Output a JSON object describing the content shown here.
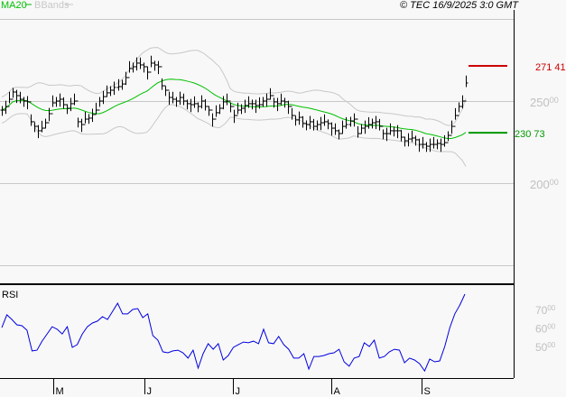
{
  "header": {
    "legend_ma": "MA20",
    "legend_bbands": "BBands",
    "copyright": "© TEC 16/9/2025 3:0 GMT"
  },
  "colors": {
    "background": "#f8f8f8",
    "bars": "#000000",
    "ma": "#00c000",
    "bands": "#c8c8c8",
    "rsi": "#0000e0",
    "resistance": "#cc0000",
    "support": "#009900",
    "axis_labels": "#c0c0c0"
  },
  "chart_data": [
    {
      "type": "bar",
      "title": "",
      "overlays": [
        "MA20",
        "BBands"
      ],
      "y_ticks": [
        {
          "value": 250,
          "label": "250",
          "sup": "00"
        },
        {
          "value": 200,
          "label": "200",
          "sup": "00"
        }
      ],
      "ylim": [
        143,
        300
      ],
      "levels": [
        {
          "name": "resistance",
          "value": 271.41,
          "label": "271",
          "sup": "41"
        },
        {
          "name": "support",
          "value": 230.73,
          "label": "230",
          "sup": "73"
        }
      ],
      "close": [
        244.5,
        246.7,
        251.1,
        255.5,
        253.3,
        251.1,
        250,
        249.5,
        237.4,
        234.6,
        231.9,
        233.5,
        236.8,
        242.3,
        248.9,
        250,
        251.1,
        247.8,
        245.6,
        248.4,
        250,
        237.4,
        235.7,
        239,
        239.6,
        241.8,
        244.5,
        250,
        252.7,
        255,
        256.6,
        258.3,
        258.8,
        260.4,
        264.3,
        269.8,
        270.9,
        273.1,
        272,
        270.9,
        267.6,
        273.1,
        272,
        270.9,
        259.3,
        256.6,
        252.2,
        251.1,
        250,
        252.2,
        250,
        248.4,
        247.8,
        248.4,
        246.7,
        250,
        246.7,
        244.5,
        239,
        242.9,
        245.6,
        249.5,
        250,
        246.7,
        241.2,
        244.5,
        245.6,
        247.3,
        248.4,
        248.4,
        247.3,
        247.8,
        250,
        251.1,
        253.3,
        249.5,
        248.4,
        250,
        249.5,
        246.7,
        241.2,
        238.5,
        240.1,
        236.3,
        235.7,
        237.4,
        234.6,
        235.7,
        236.8,
        237.4,
        236.3,
        233.5,
        231.9,
        230.2,
        234.6,
        235.7,
        237.9,
        239,
        230.2,
        233.5,
        234.6,
        235.7,
        236.8,
        237.4,
        234.6,
        230.2,
        230.2,
        231.9,
        231.9,
        231.9,
        228,
        225.8,
        226.9,
        227.5,
        226.4,
        223.6,
        223.6,
        222.5,
        223.6,
        223.6,
        224.2,
        223.6,
        224.7,
        229.1,
        234.6,
        241.2,
        246.7,
        250,
        261
      ]
    },
    {
      "type": "line",
      "title": "RSI",
      "y_ticks": [
        {
          "value": 70,
          "label": "70",
          "sup": "00"
        },
        {
          "value": 60,
          "label": "60",
          "sup": "00"
        },
        {
          "value": 50,
          "label": "50",
          "sup": "00"
        }
      ],
      "x_ticks": [
        "M",
        "J",
        "J",
        "A",
        "S"
      ],
      "values": [
        60.2,
        67.1,
        64.6,
        61.7,
        61.2,
        58.8,
        47.6,
        48,
        52.9,
        56.8,
        60.7,
        59.3,
        56.8,
        60.7,
        49.5,
        51,
        56.8,
        60.7,
        62.7,
        63.7,
        66.1,
        64.6,
        69,
        73.4,
        67.6,
        67.6,
        70,
        70.5,
        65.6,
        67.6,
        55.9,
        53.4,
        47.1,
        46.6,
        47.6,
        48,
        46.6,
        43.7,
        48,
        38.3,
        46.1,
        51.5,
        48.5,
        51.5,
        42.7,
        45.1,
        49.5,
        51,
        52.4,
        52,
        52.9,
        51.5,
        59.3,
        52,
        51.5,
        55.4,
        51,
        48.5,
        43.7,
        43.7,
        46.1,
        37.8,
        44.6,
        44.6,
        45.1,
        46.1,
        46.6,
        48.5,
        41.7,
        39.3,
        43.7,
        44.6,
        52,
        50,
        53.4,
        43.7,
        44.6,
        47.1,
        48.5,
        48,
        41.2,
        43.7,
        42.7,
        40.7,
        36.8,
        43.2,
        41.7,
        42.2,
        50,
        60.2,
        67.6,
        72.4,
        78.3
      ]
    }
  ]
}
